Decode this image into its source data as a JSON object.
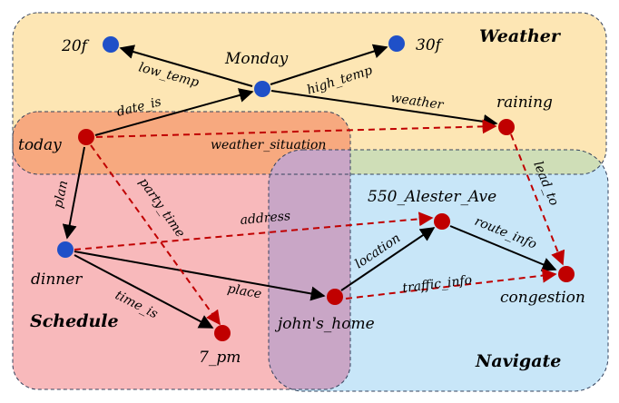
{
  "colors": {
    "weather_region": "#fde6b4",
    "schedule_region": "#f8b9bb",
    "navigate_region": "#c8e6f8",
    "overlap_region": "#c9a6c6",
    "overlap_weather_schedule": "#f7a97f",
    "overlap_weather_navigate": "#cfdeb7",
    "region_border": "#33415c",
    "blue_node": "#1f50c8",
    "red_node": "#c00000",
    "black_edge": "#000000",
    "red_edge": "#c00000"
  },
  "regions": {
    "weather": "Weather",
    "schedule": "Schedule",
    "navigate": "Navigate"
  },
  "nodes": {
    "temp_low": "20f",
    "monday": "Monday",
    "temp_high": "30f",
    "raining": "raining",
    "today": "today",
    "dinner": "dinner",
    "time": "7_pm",
    "address": "550_Alester_Ave",
    "congestion": "congestion",
    "home": "john's_home"
  },
  "edges": {
    "low_temp": "low_temp",
    "high_temp": "high_temp",
    "weather": "weather",
    "date_is": "date_is",
    "weather_situation": "weather_situation",
    "plan": "plan",
    "party_time": "party_time",
    "address": "address",
    "lead_to": "lead_to",
    "route_info": "route_info",
    "location": "location",
    "traffic_info": "traffic_info",
    "place": "place",
    "time_is": "time_is"
  }
}
